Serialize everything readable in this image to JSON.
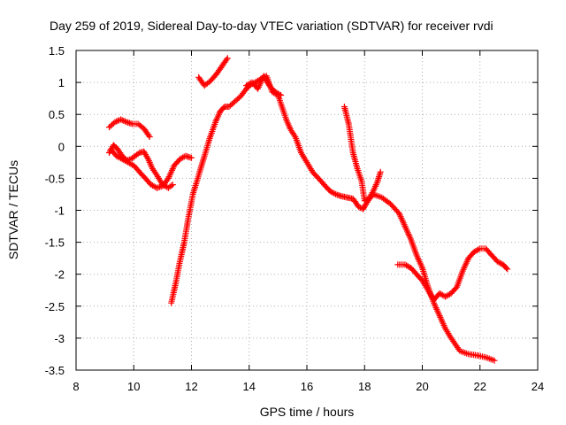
{
  "chart_data": {
    "type": "scatter",
    "title": "Day 259 of 2019, Sidereal Day-to-day VTEC variation (SDTVAR) for receiver rvdi",
    "xlabel": "GPS time / hours",
    "ylabel": "SDTVAR / TECUs",
    "xlim": [
      8,
      24
    ],
    "ylim": [
      -3.5,
      1.5
    ],
    "xticks": [
      "8",
      "10",
      "12",
      "14",
      "16",
      "18",
      "20",
      "22",
      "24"
    ],
    "yticks": [
      "1.5",
      "1",
      "0.5",
      "0",
      "-0.5",
      "-1",
      "-1.5",
      "-2",
      "-2.5",
      "-3",
      "-3.5"
    ],
    "grid": true,
    "marker": "+",
    "color": "#ff0000",
    "series": [
      {
        "x": [
          9.15,
          9.35,
          9.55,
          9.75,
          9.95,
          10.15,
          10.35,
          10.55
        ],
        "y": [
          0.3,
          0.38,
          0.42,
          0.38,
          0.35,
          0.35,
          0.28,
          0.15
        ]
      },
      {
        "x": [
          9.15,
          9.3,
          9.45,
          9.6,
          9.75,
          9.9,
          10.05,
          10.2,
          10.35,
          10.5,
          10.65,
          10.8,
          11.0,
          11.2,
          11.35
        ],
        "y": [
          -0.1,
          0.02,
          -0.05,
          -0.15,
          -0.22,
          -0.2,
          -0.15,
          -0.1,
          -0.08,
          -0.2,
          -0.35,
          -0.45,
          -0.6,
          -0.65,
          -0.6
        ]
      },
      {
        "x": [
          9.2,
          9.4,
          9.6,
          9.8,
          10.0,
          10.2,
          10.4,
          10.6,
          10.8,
          11.0,
          11.2,
          11.4,
          11.6,
          11.8,
          12.0
        ],
        "y": [
          -0.05,
          -0.15,
          -0.2,
          -0.25,
          -0.3,
          -0.4,
          -0.5,
          -0.6,
          -0.65,
          -0.62,
          -0.5,
          -0.3,
          -0.2,
          -0.15,
          -0.18
        ]
      },
      {
        "x": [
          11.3,
          11.45,
          11.6,
          11.75,
          11.9,
          12.05,
          12.25,
          12.45,
          12.65,
          12.85,
          13.0,
          13.15,
          13.3,
          13.5,
          13.7,
          13.9,
          14.0,
          14.2,
          14.4,
          14.6,
          14.8,
          15.0,
          15.15,
          15.3,
          15.45,
          15.6,
          15.8,
          16.0,
          16.2,
          16.4,
          16.6,
          16.8,
          17.0,
          17.2,
          17.4,
          17.6,
          17.8,
          17.95,
          18.05,
          18.2,
          18.3
        ],
        "y": [
          -2.45,
          -2.15,
          -1.8,
          -1.5,
          -1.1,
          -0.75,
          -0.45,
          -0.15,
          0.15,
          0.4,
          0.55,
          0.62,
          0.62,
          0.7,
          0.78,
          0.9,
          0.95,
          1.0,
          1.05,
          1.1,
          0.85,
          0.8,
          0.6,
          0.4,
          0.25,
          0.15,
          -0.1,
          -0.25,
          -0.4,
          -0.5,
          -0.6,
          -0.7,
          -0.75,
          -0.78,
          -0.8,
          -0.82,
          -0.95,
          -0.98,
          -0.9,
          -0.8,
          -0.75
        ]
      },
      {
        "x": [
          12.25,
          12.45,
          12.65,
          12.85,
          13.05,
          13.25
        ],
        "y": [
          1.08,
          0.95,
          1.02,
          1.12,
          1.25,
          1.38
        ]
      },
      {
        "x": [
          13.9,
          14.1,
          14.3,
          14.5,
          14.7,
          14.9,
          15.1
        ],
        "y": [
          0.95,
          1.0,
          0.9,
          1.1,
          0.95,
          0.85,
          0.8
        ]
      },
      {
        "x": [
          17.3,
          17.45,
          17.6,
          17.75,
          17.9,
          18.0,
          18.15,
          18.3,
          18.45,
          18.55
        ],
        "y": [
          0.62,
          0.35,
          -0.1,
          -0.35,
          -0.55,
          -0.85,
          -0.82,
          -0.7,
          -0.55,
          -0.4
        ]
      },
      {
        "x": [
          18.3,
          18.6,
          18.9,
          19.2,
          19.4,
          19.6,
          19.8,
          20.0,
          20.2,
          20.4,
          20.6,
          20.8,
          21.0,
          21.3,
          21.6,
          21.9,
          22.2,
          22.5
        ],
        "y": [
          -0.75,
          -0.8,
          -0.9,
          -1.05,
          -1.25,
          -1.45,
          -1.7,
          -1.9,
          -2.2,
          -2.45,
          -2.65,
          -2.85,
          -3.0,
          -3.2,
          -3.25,
          -3.27,
          -3.3,
          -3.35
        ]
      },
      {
        "x": [
          19.15,
          19.4,
          19.6,
          19.8,
          20.0,
          20.2,
          20.4,
          20.6,
          20.8,
          21.0,
          21.2,
          21.4,
          21.6,
          21.8,
          22.0,
          22.2,
          22.4,
          22.6,
          22.8,
          22.95
        ],
        "y": [
          -1.85,
          -1.85,
          -1.9,
          -2.0,
          -2.1,
          -2.25,
          -2.4,
          -2.3,
          -2.35,
          -2.3,
          -2.2,
          -1.95,
          -1.75,
          -1.65,
          -1.6,
          -1.6,
          -1.7,
          -1.8,
          -1.85,
          -1.92
        ]
      }
    ]
  }
}
